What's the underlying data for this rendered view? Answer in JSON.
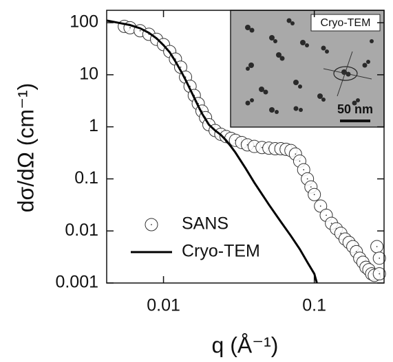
{
  "chart_data": {
    "type": "scatter",
    "xlabel": "q (Å⁻¹)",
    "ylabel": "dσ/dΩ (cm⁻¹)",
    "xlog": true,
    "ylog": true,
    "xlim": [
      0.0042,
      0.29
    ],
    "ylim": [
      0.001,
      173
    ],
    "xticks": [
      0.01,
      0.1
    ],
    "yticks": [
      0.001,
      0.01,
      0.1,
      1,
      10,
      100
    ],
    "legend": "lower left",
    "series": [
      {
        "name": "SANS",
        "type": "scatter",
        "color": "#333333",
        "x": [
          0.0055,
          0.006,
          0.007,
          0.008,
          0.009,
          0.01,
          0.011,
          0.012,
          0.013,
          0.014,
          0.015,
          0.016,
          0.017,
          0.018,
          0.019,
          0.02,
          0.022,
          0.024,
          0.026,
          0.028,
          0.03,
          0.033,
          0.036,
          0.04,
          0.045,
          0.05,
          0.055,
          0.06,
          0.065,
          0.07,
          0.075,
          0.08,
          0.085,
          0.09,
          0.095,
          0.1,
          0.11,
          0.12,
          0.13,
          0.14,
          0.15,
          0.16,
          0.17,
          0.18,
          0.19,
          0.2,
          0.21,
          0.22,
          0.23,
          0.24,
          0.25,
          0.26,
          0.27,
          0.27
        ],
        "values": [
          85,
          80,
          70,
          60,
          48,
          38,
          28,
          20,
          14,
          9,
          6,
          4,
          2.8,
          2.0,
          1.5,
          1.1,
          0.85,
          0.72,
          0.65,
          0.6,
          0.55,
          0.5,
          0.45,
          0.42,
          0.4,
          0.39,
          0.38,
          0.38,
          0.37,
          0.35,
          0.3,
          0.22,
          0.15,
          0.1,
          0.07,
          0.05,
          0.03,
          0.02,
          0.014,
          0.011,
          0.009,
          0.007,
          0.006,
          0.005,
          0.004,
          0.003,
          0.0025,
          0.002,
          0.0018,
          0.0015,
          0.0014,
          0.005,
          0.003,
          0.0015
        ]
      },
      {
        "name": "Cryo-TEM",
        "type": "line",
        "color": "#000000",
        "x": [
          0.0042,
          0.005,
          0.006,
          0.007,
          0.008,
          0.009,
          0.01,
          0.011,
          0.012,
          0.013,
          0.014,
          0.015,
          0.016,
          0.017,
          0.018,
          0.019,
          0.02,
          0.022,
          0.024,
          0.026,
          0.028,
          0.03,
          0.035,
          0.04,
          0.05,
          0.06,
          0.07,
          0.08,
          0.09,
          0.1,
          0.104
        ],
        "values": [
          110,
          100,
          90,
          78,
          64,
          50,
          37,
          27,
          18,
          12,
          8,
          5.3,
          3.6,
          2.5,
          1.8,
          1.4,
          1.1,
          0.85,
          0.7,
          0.55,
          0.42,
          0.32,
          0.16,
          0.085,
          0.032,
          0.015,
          0.008,
          0.0045,
          0.0025,
          0.0015,
          0.001
        ]
      }
    ],
    "inset": {
      "label": "Cryo-TEM",
      "scale_bar": "50 nm"
    }
  }
}
